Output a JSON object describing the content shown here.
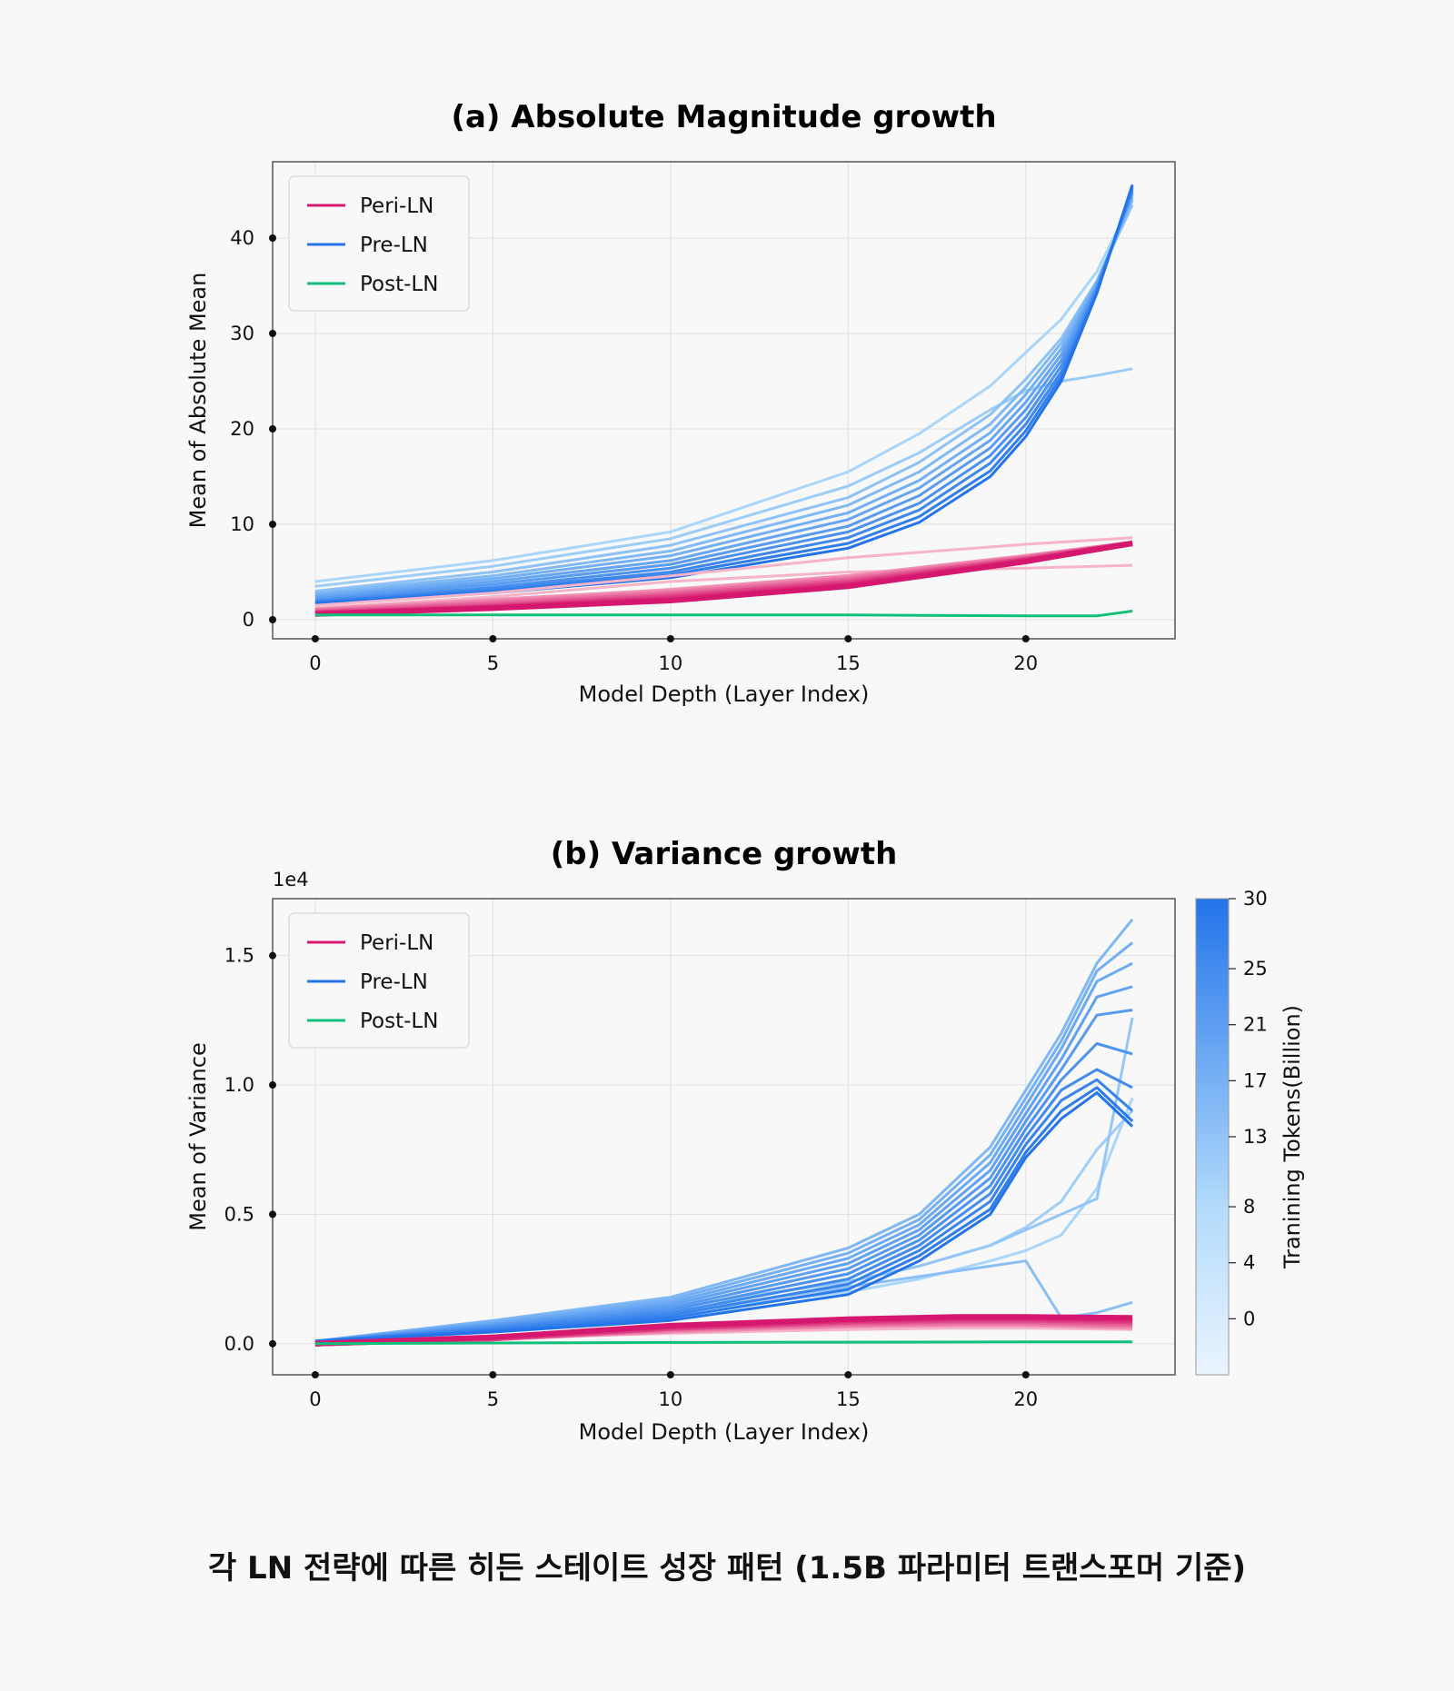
{
  "caption": "각 LN 전략에 따른 히든 스테이트 성장 패턴 (1.5B 파라미터 트랜스포머 기준)",
  "colors": {
    "peri": "#d6176f",
    "peri_light": "#f6b4c8",
    "pre_dark": "#2374ea",
    "pre_light": "#a9d6fa",
    "post": "#10c07a",
    "grid": "#e3e3e3",
    "frame": "#555555"
  },
  "chart_data": [
    {
      "type": "line",
      "title": "(a) Absolute Magnitude growth",
      "xlabel": "Model Depth (Layer Index)",
      "ylabel": "Mean of Absolute Mean",
      "xlim": [
        -1.2,
        24.2
      ],
      "ylim": [
        -2,
        48
      ],
      "xticks": [
        0,
        5,
        10,
        15,
        20
      ],
      "yticks": [
        0,
        10,
        20,
        30,
        40
      ],
      "grid": true,
      "legend": {
        "placement": "top-left",
        "entries": [
          "Peri-LN",
          "Pre-LN",
          "Post-LN"
        ]
      },
      "series": [
        {
          "group": "Peri-LN",
          "family": "light",
          "x": [
            0,
            5,
            10,
            15,
            20,
            23
          ],
          "y": [
            1.5,
            2.8,
            4.6,
            6.5,
            7.9,
            8.6
          ]
        },
        {
          "group": "Peri-LN",
          "family": "light",
          "x": [
            0,
            5,
            10,
            15,
            20,
            23
          ],
          "y": [
            1.2,
            2.4,
            4.0,
            5.0,
            5.4,
            5.7
          ]
        },
        {
          "group": "Peri-LN",
          "family": "light",
          "x": [
            0,
            5,
            10,
            15,
            20,
            23
          ],
          "y": [
            1.0,
            2.0,
            3.2,
            4.6,
            6.6,
            8.0
          ]
        },
        {
          "group": "Peri-LN",
          "family": "band",
          "x": [
            0,
            5,
            10,
            15,
            20,
            23
          ],
          "y": [
            1.0,
            2.0,
            3.0,
            4.5,
            6.6,
            8.0
          ]
        },
        {
          "group": "Peri-LN",
          "family": "band",
          "x": [
            0,
            5,
            10,
            15,
            20,
            23
          ],
          "y": [
            0.9,
            1.8,
            2.8,
            4.3,
            6.5,
            8.0
          ]
        },
        {
          "group": "Peri-LN",
          "family": "band",
          "x": [
            0,
            5,
            10,
            15,
            20,
            23
          ],
          "y": [
            0.8,
            1.6,
            2.6,
            4.1,
            6.4,
            8.0
          ]
        },
        {
          "group": "Peri-LN",
          "family": "band",
          "x": [
            0,
            5,
            10,
            15,
            20,
            23
          ],
          "y": [
            0.7,
            1.4,
            2.4,
            3.9,
            6.3,
            8.0
          ]
        },
        {
          "group": "Peri-LN",
          "family": "band",
          "x": [
            0,
            5,
            10,
            15,
            20,
            23
          ],
          "y": [
            0.6,
            1.3,
            2.2,
            3.7,
            6.2,
            8.0
          ]
        },
        {
          "group": "Peri-LN",
          "family": "band",
          "x": [
            0,
            5,
            10,
            15,
            20,
            23
          ],
          "y": [
            0.6,
            1.2,
            2.0,
            3.5,
            6.1,
            8.0
          ]
        },
        {
          "group": "Post-LN",
          "family": "solid",
          "x": [
            0,
            5,
            10,
            15,
            20,
            22,
            23
          ],
          "y": [
            0.5,
            0.5,
            0.5,
            0.5,
            0.4,
            0.4,
            0.9
          ]
        },
        {
          "group": "Pre-LN",
          "family": "pre",
          "x": [
            0,
            5,
            10,
            15,
            17,
            19,
            20,
            21,
            22,
            23
          ],
          "y": [
            4.0,
            6.2,
            9.2,
            15.5,
            19.5,
            24.5,
            28.0,
            31.5,
            36.5,
            44.0
          ]
        },
        {
          "group": "Pre-LN",
          "family": "pre",
          "x": [
            0,
            5,
            10,
            15,
            17,
            19,
            20,
            21,
            22,
            23
          ],
          "y": [
            3.5,
            5.6,
            8.5,
            14.0,
            17.5,
            22.0,
            24.0,
            25.0,
            25.6,
            26.3
          ]
        },
        {
          "group": "Pre-LN",
          "family": "pre",
          "x": [
            0,
            5,
            10,
            15,
            17,
            19,
            20,
            21,
            22,
            23
          ],
          "y": [
            3.0,
            5.0,
            7.8,
            12.8,
            16.5,
            21.5,
            25.2,
            29.5,
            35.5,
            43.5
          ]
        },
        {
          "group": "Pre-LN",
          "family": "pre",
          "x": [
            0,
            5,
            10,
            15,
            17,
            19,
            20,
            21,
            22,
            23
          ],
          "y": [
            2.8,
            4.6,
            7.2,
            12.0,
            15.5,
            20.5,
            24.4,
            29.0,
            35.5,
            44.0
          ]
        },
        {
          "group": "Pre-LN",
          "family": "pre",
          "x": [
            0,
            5,
            10,
            15,
            17,
            19,
            20,
            21,
            22,
            23
          ],
          "y": [
            2.6,
            4.3,
            6.7,
            11.2,
            14.6,
            19.6,
            23.6,
            28.4,
            35.3,
            44.3
          ]
        },
        {
          "group": "Pre-LN",
          "family": "pre",
          "x": [
            0,
            5,
            10,
            15,
            17,
            19,
            20,
            21,
            22,
            23
          ],
          "y": [
            2.4,
            4.0,
            6.2,
            10.5,
            13.8,
            18.8,
            22.8,
            27.8,
            35.1,
            44.6
          ]
        },
        {
          "group": "Pre-LN",
          "family": "pre",
          "x": [
            0,
            5,
            10,
            15,
            17,
            19,
            20,
            21,
            22,
            23
          ],
          "y": [
            2.2,
            3.7,
            5.8,
            9.8,
            13.0,
            18.0,
            22.0,
            27.2,
            34.9,
            44.8
          ]
        },
        {
          "group": "Pre-LN",
          "family": "pre",
          "x": [
            0,
            5,
            10,
            15,
            17,
            19,
            20,
            21,
            22,
            23
          ],
          "y": [
            2.0,
            3.4,
            5.4,
            9.2,
            12.2,
            17.2,
            21.2,
            26.6,
            34.7,
            45.0
          ]
        },
        {
          "group": "Pre-LN",
          "family": "pre",
          "x": [
            0,
            5,
            10,
            15,
            17,
            19,
            20,
            21,
            22,
            23
          ],
          "y": [
            1.9,
            3.2,
            5.0,
            8.6,
            11.5,
            16.4,
            20.5,
            26.0,
            34.5,
            45.2
          ]
        },
        {
          "group": "Pre-LN",
          "family": "pre",
          "x": [
            0,
            5,
            10,
            15,
            17,
            19,
            20,
            21,
            22,
            23
          ],
          "y": [
            1.8,
            3.0,
            4.7,
            8.0,
            10.8,
            15.6,
            19.8,
            25.5,
            34.3,
            45.4
          ]
        },
        {
          "group": "Pre-LN",
          "family": "pre",
          "x": [
            0,
            5,
            10,
            15,
            17,
            19,
            20,
            21,
            22,
            23
          ],
          "y": [
            1.7,
            2.8,
            4.4,
            7.5,
            10.2,
            15.0,
            19.2,
            25.0,
            34.2,
            45.6
          ]
        }
      ]
    },
    {
      "type": "line",
      "title": "(b) Variance growth",
      "offset_text": "1e4",
      "xlabel": "Model Depth (Layer Index)",
      "ylabel": "Mean of Variance",
      "xlim": [
        -1.2,
        24.2
      ],
      "ylim": [
        -0.12,
        1.72
      ],
      "xticks": [
        0,
        5,
        10,
        15,
        20
      ],
      "yticks": [
        0.0,
        0.5,
        1.0,
        1.5
      ],
      "ytick_labels": [
        "0.0",
        "0.5",
        "1.0",
        "1.5"
      ],
      "grid": true,
      "legend": {
        "placement": "top-left",
        "entries": [
          "Peri-LN",
          "Pre-LN",
          "Post-LN"
        ]
      },
      "colorbar": {
        "label": "Tranining Tokens(Billion)",
        "ticks": [
          0,
          4,
          8,
          13,
          17,
          21,
          25,
          30
        ],
        "range": [
          -4,
          30
        ]
      },
      "series": [
        {
          "group": "Peri-LN",
          "family": "light",
          "x": [
            0,
            5,
            10,
            15,
            18,
            20,
            23
          ],
          "y": [
            0.0,
            0.02,
            0.04,
            0.055,
            0.06,
            0.06,
            0.055
          ]
        },
        {
          "group": "Peri-LN",
          "family": "band",
          "x": [
            0,
            5,
            10,
            15,
            18,
            20,
            23
          ],
          "y": [
            0.0,
            0.02,
            0.05,
            0.07,
            0.075,
            0.075,
            0.065
          ]
        },
        {
          "group": "Peri-LN",
          "family": "band",
          "x": [
            0,
            5,
            10,
            15,
            18,
            20,
            23
          ],
          "y": [
            0.0,
            0.02,
            0.055,
            0.075,
            0.08,
            0.08,
            0.072
          ]
        },
        {
          "group": "Peri-LN",
          "family": "band",
          "x": [
            0,
            5,
            10,
            15,
            18,
            20,
            23
          ],
          "y": [
            0.0,
            0.02,
            0.06,
            0.08,
            0.086,
            0.086,
            0.078
          ]
        },
        {
          "group": "Peri-LN",
          "family": "band",
          "x": [
            0,
            5,
            10,
            15,
            18,
            20,
            23
          ],
          "y": [
            0.0,
            0.02,
            0.06,
            0.085,
            0.092,
            0.092,
            0.085
          ]
        },
        {
          "group": "Peri-LN",
          "family": "band",
          "x": [
            0,
            5,
            10,
            15,
            18,
            20,
            23
          ],
          "y": [
            0.0,
            0.025,
            0.065,
            0.09,
            0.098,
            0.098,
            0.092
          ]
        },
        {
          "group": "Peri-LN",
          "family": "band",
          "x": [
            0,
            5,
            10,
            15,
            18,
            20,
            23
          ],
          "y": [
            0.0,
            0.025,
            0.07,
            0.095,
            0.104,
            0.104,
            0.1
          ]
        },
        {
          "group": "Post-LN",
          "family": "solid",
          "x": [
            0,
            5,
            10,
            15,
            20,
            23
          ],
          "y": [
            0.0,
            0.003,
            0.005,
            0.006,
            0.007,
            0.007
          ]
        },
        {
          "group": "Pre-LN",
          "family": "pre",
          "x": [
            0,
            5,
            10,
            15,
            17,
            19,
            20,
            21,
            22,
            23
          ],
          "y": [
            0.01,
            0.06,
            0.12,
            0.2,
            0.25,
            0.32,
            0.36,
            0.42,
            0.6,
            0.95
          ]
        },
        {
          "group": "Pre-LN",
          "family": "pre",
          "x": [
            0,
            5,
            10,
            15,
            17,
            19,
            20,
            21,
            22,
            23
          ],
          "y": [
            0.01,
            0.07,
            0.14,
            0.24,
            0.3,
            0.38,
            0.45,
            0.55,
            0.75,
            0.9
          ]
        },
        {
          "group": "Pre-LN",
          "family": "pre",
          "x": [
            0,
            5,
            10,
            15,
            17,
            19,
            20,
            21,
            22,
            23
          ],
          "y": [
            0.01,
            0.06,
            0.14,
            0.24,
            0.3,
            0.38,
            0.44,
            0.5,
            0.56,
            1.26
          ]
        },
        {
          "group": "Pre-LN",
          "family": "pre",
          "x": [
            0,
            5,
            10,
            15,
            17,
            19,
            20,
            21,
            22,
            23
          ],
          "y": [
            0.01,
            0.06,
            0.12,
            0.22,
            0.26,
            0.3,
            0.32,
            0.1,
            0.12,
            0.16
          ]
        },
        {
          "group": "Pre-LN",
          "family": "pre",
          "x": [
            0,
            5,
            10,
            15,
            17,
            19,
            20,
            21,
            22,
            23
          ],
          "y": [
            0.01,
            0.09,
            0.18,
            0.37,
            0.5,
            0.76,
            0.98,
            1.2,
            1.47,
            1.64
          ]
        },
        {
          "group": "Pre-LN",
          "family": "pre",
          "x": [
            0,
            5,
            10,
            15,
            17,
            19,
            20,
            21,
            22,
            23
          ],
          "y": [
            0.01,
            0.085,
            0.17,
            0.35,
            0.48,
            0.73,
            0.95,
            1.17,
            1.44,
            1.55
          ]
        },
        {
          "group": "Pre-LN",
          "family": "pre",
          "x": [
            0,
            5,
            10,
            15,
            17,
            19,
            20,
            21,
            22,
            23
          ],
          "y": [
            0.01,
            0.08,
            0.16,
            0.33,
            0.46,
            0.7,
            0.92,
            1.14,
            1.4,
            1.47
          ]
        },
        {
          "group": "Pre-LN",
          "family": "pre",
          "x": [
            0,
            5,
            10,
            15,
            17,
            19,
            20,
            21,
            22,
            23
          ],
          "y": [
            0.01,
            0.075,
            0.15,
            0.31,
            0.44,
            0.67,
            0.89,
            1.1,
            1.34,
            1.38
          ]
        },
        {
          "group": "Pre-LN",
          "family": "pre",
          "x": [
            0,
            5,
            10,
            15,
            17,
            19,
            20,
            21,
            22,
            23
          ],
          "y": [
            0.01,
            0.07,
            0.14,
            0.29,
            0.42,
            0.64,
            0.86,
            1.06,
            1.27,
            1.29
          ]
        },
        {
          "group": "Pre-LN",
          "family": "pre",
          "x": [
            0,
            5,
            10,
            15,
            17,
            19,
            20,
            21,
            22,
            23
          ],
          "y": [
            0.01,
            0.065,
            0.13,
            0.27,
            0.4,
            0.61,
            0.83,
            1.02,
            1.16,
            1.12
          ]
        },
        {
          "group": "Pre-LN",
          "family": "pre",
          "x": [
            0,
            5,
            10,
            15,
            17,
            19,
            20,
            21,
            22,
            23
          ],
          "y": [
            0.01,
            0.06,
            0.12,
            0.25,
            0.38,
            0.58,
            0.8,
            0.98,
            1.06,
            0.99
          ]
        },
        {
          "group": "Pre-LN",
          "family": "pre",
          "x": [
            0,
            5,
            10,
            15,
            17,
            19,
            20,
            21,
            22,
            23
          ],
          "y": [
            0.01,
            0.055,
            0.11,
            0.23,
            0.36,
            0.55,
            0.77,
            0.94,
            1.02,
            0.9
          ]
        },
        {
          "group": "Pre-LN",
          "family": "pre",
          "x": [
            0,
            5,
            10,
            15,
            17,
            19,
            20,
            21,
            22,
            23
          ],
          "y": [
            0.01,
            0.05,
            0.1,
            0.21,
            0.34,
            0.52,
            0.74,
            0.9,
            0.99,
            0.86
          ]
        },
        {
          "group": "Pre-LN",
          "family": "pre",
          "x": [
            0,
            5,
            10,
            15,
            17,
            19,
            20,
            21,
            22,
            23
          ],
          "y": [
            0.01,
            0.045,
            0.09,
            0.19,
            0.32,
            0.5,
            0.72,
            0.87,
            0.97,
            0.84
          ]
        }
      ]
    }
  ]
}
